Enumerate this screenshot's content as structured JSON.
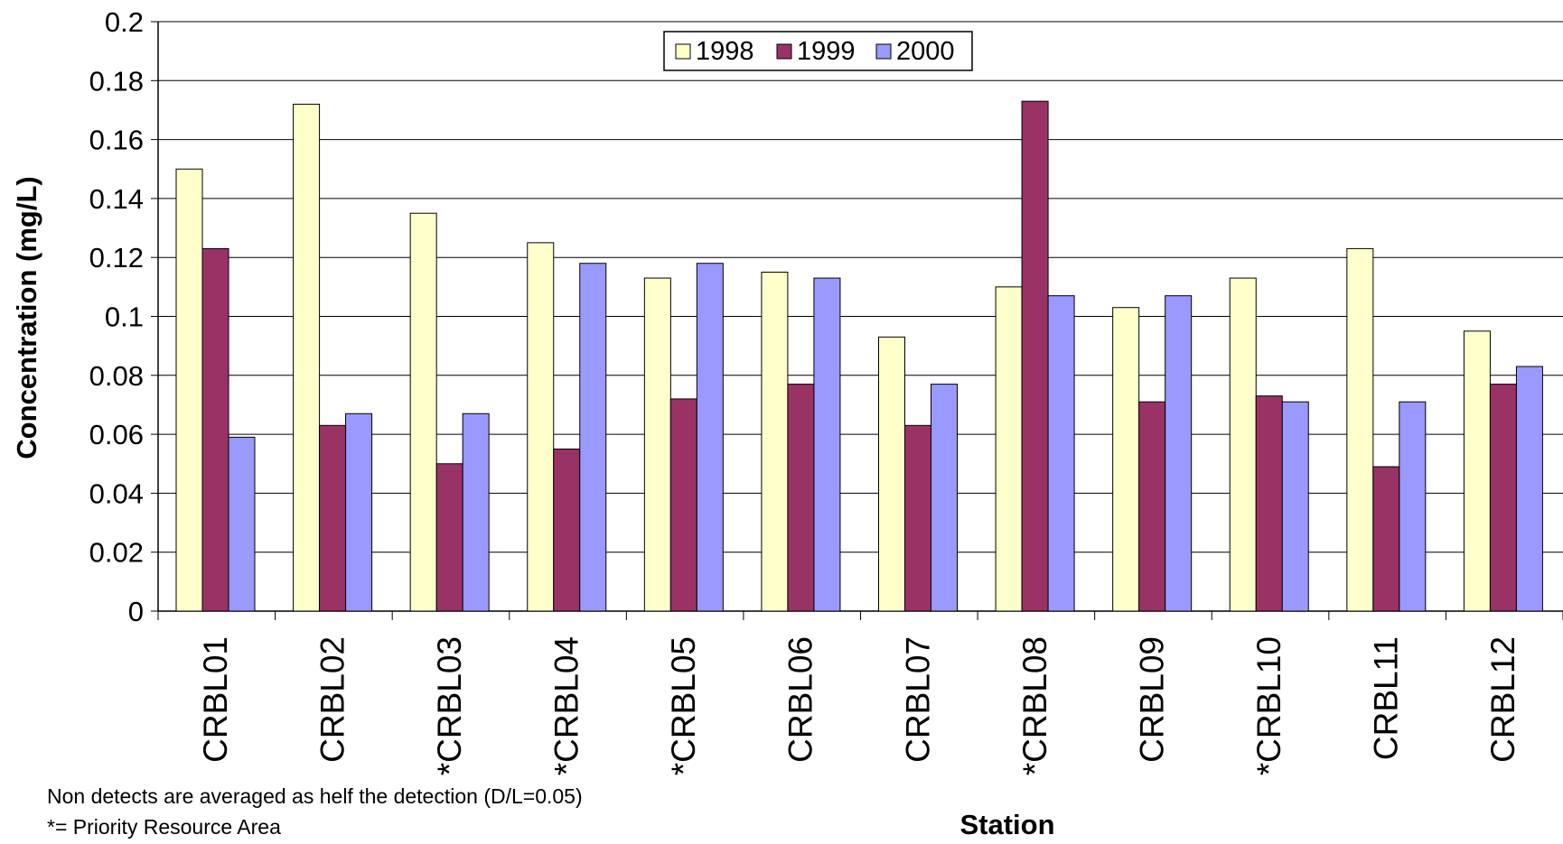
{
  "chart_data": {
    "type": "bar",
    "title": "",
    "xlabel": "Station",
    "ylabel": "Concentration (mg/L)",
    "ylim": [
      0,
      0.2
    ],
    "ytick_step": 0.02,
    "yticks": [
      "0",
      "0.02",
      "0.04",
      "0.06",
      "0.08",
      "0.1",
      "0.12",
      "0.14",
      "0.16",
      "0.18",
      "0.2"
    ],
    "grid": true,
    "legend_position": "top-center",
    "categories": [
      "CRBL01",
      "CRBL02",
      "*CRBL03",
      "*CRBL04",
      "*CRBL05",
      "CRBL06",
      "CRBL07",
      "*CRBL08",
      "CRBL09",
      "*CRBL10",
      "CRBL11",
      "CRBL12"
    ],
    "series": [
      {
        "name": "1998",
        "color": "#FFFFCC",
        "values": [
          0.15,
          0.172,
          0.135,
          0.125,
          0.113,
          0.115,
          0.093,
          0.11,
          0.103,
          0.113,
          0.123,
          0.095
        ]
      },
      {
        "name": "1999",
        "color": "#993366",
        "values": [
          0.123,
          0.063,
          0.05,
          0.055,
          0.072,
          0.077,
          0.063,
          0.173,
          0.071,
          0.073,
          0.049,
          0.077
        ]
      },
      {
        "name": "2000",
        "color": "#9999FF",
        "values": [
          0.059,
          0.067,
          0.067,
          0.118,
          0.118,
          0.113,
          0.077,
          0.107,
          0.107,
          0.071,
          0.071,
          0.083
        ]
      }
    ]
  },
  "notes": {
    "detection": "Non detects are averaged as helf the detection (D/L=0.05)",
    "priority": "*= Priority Resource Area"
  }
}
